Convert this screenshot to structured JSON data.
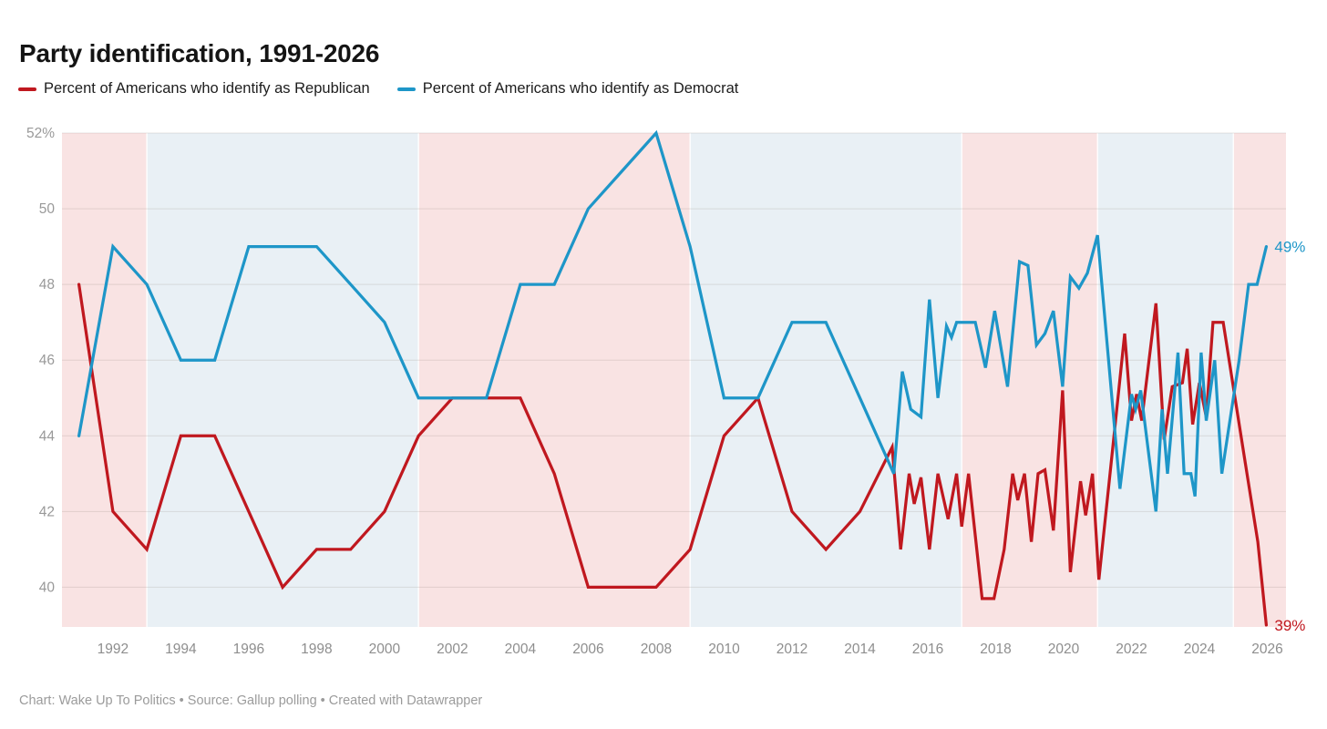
{
  "title": "Party identification, 1991-2026",
  "legend": [
    {
      "label": "Percent of Americans who identify as Republican",
      "color": "#c0181f"
    },
    {
      "label": "Percent of Americans who identify as Democrat",
      "color": "#1e96c8"
    }
  ],
  "footer": "Chart: Wake Up To Politics • Source: Gallup polling • Created with Datawrapper",
  "chart_data": {
    "type": "line",
    "title": "Party identification, 1991-2026",
    "xlabel": "",
    "ylabel": "",
    "x_range": [
      1990.5,
      2026.55
    ],
    "y_range": [
      38.95,
      52
    ],
    "grid": true,
    "legend_position": "top-left",
    "y_ticks": [
      {
        "v": 52,
        "label": "52%"
      },
      {
        "v": 50,
        "label": "50"
      },
      {
        "v": 48,
        "label": "48"
      },
      {
        "v": 46,
        "label": "46"
      },
      {
        "v": 44,
        "label": "44"
      },
      {
        "v": 42,
        "label": "42"
      },
      {
        "v": 40,
        "label": "40"
      }
    ],
    "x_ticks": [
      1992,
      1994,
      1996,
      1998,
      2000,
      2002,
      2004,
      2006,
      2008,
      2010,
      2012,
      2014,
      2016,
      2018,
      2020,
      2022,
      2024,
      2026
    ],
    "band_colors": {
      "R": "#f9e3e3",
      "D": "#e9f0f5"
    },
    "bands": [
      {
        "from": 1990.5,
        "to": 1993,
        "party": "R"
      },
      {
        "from": 1993,
        "to": 2001,
        "party": "D"
      },
      {
        "from": 2001,
        "to": 2009,
        "party": "R"
      },
      {
        "from": 2009,
        "to": 2017,
        "party": "D"
      },
      {
        "from": 2017,
        "to": 2021,
        "party": "R"
      },
      {
        "from": 2021,
        "to": 2025,
        "party": "D"
      },
      {
        "from": 2025,
        "to": 2026.55,
        "party": "R"
      }
    ],
    "series": [
      {
        "name": "Republican",
        "color": "#c0181f",
        "end_label": "39%",
        "points": [
          [
            1991,
            48
          ],
          [
            1992,
            42
          ],
          [
            1993,
            41
          ],
          [
            1994,
            44
          ],
          [
            1995,
            44
          ],
          [
            1996,
            42
          ],
          [
            1997,
            40
          ],
          [
            1998,
            41
          ],
          [
            1999,
            41
          ],
          [
            2000,
            42
          ],
          [
            2001,
            44
          ],
          [
            2002,
            45
          ],
          [
            2003,
            45
          ],
          [
            2004,
            45
          ],
          [
            2005,
            43
          ],
          [
            2006,
            40
          ],
          [
            2007,
            40
          ],
          [
            2008,
            40
          ],
          [
            2009,
            41
          ],
          [
            2010,
            44
          ],
          [
            2011,
            45
          ],
          [
            2012,
            42
          ],
          [
            2013,
            41
          ],
          [
            2014,
            42
          ],
          [
            2014.95,
            43.7
          ],
          [
            2015.2,
            41
          ],
          [
            2015.45,
            43
          ],
          [
            2015.6,
            42.2
          ],
          [
            2015.8,
            42.9
          ],
          [
            2016.05,
            41
          ],
          [
            2016.3,
            43
          ],
          [
            2016.6,
            41.8
          ],
          [
            2016.85,
            43
          ],
          [
            2017.0,
            41.6
          ],
          [
            2017.2,
            43
          ],
          [
            2017.6,
            39.7
          ],
          [
            2017.95,
            39.7
          ],
          [
            2018.25,
            41
          ],
          [
            2018.5,
            43
          ],
          [
            2018.65,
            42.3
          ],
          [
            2018.85,
            43
          ],
          [
            2019.05,
            41.2
          ],
          [
            2019.25,
            43
          ],
          [
            2019.45,
            43.1
          ],
          [
            2019.7,
            41.5
          ],
          [
            2019.97,
            45.2
          ],
          [
            2020.2,
            40.4
          ],
          [
            2020.5,
            42.8
          ],
          [
            2020.65,
            41.9
          ],
          [
            2020.85,
            43
          ],
          [
            2021.04,
            40.2
          ],
          [
            2021.45,
            43.7
          ],
          [
            2021.8,
            46.7
          ],
          [
            2022.0,
            44.4
          ],
          [
            2022.15,
            45.1
          ],
          [
            2022.3,
            44.4
          ],
          [
            2022.72,
            47.5
          ],
          [
            2022.96,
            43.9
          ],
          [
            2023.2,
            45.3
          ],
          [
            2023.5,
            45.4
          ],
          [
            2023.64,
            46.3
          ],
          [
            2023.8,
            44.3
          ],
          [
            2024.0,
            45.4
          ],
          [
            2024.2,
            44.5
          ],
          [
            2024.4,
            47
          ],
          [
            2024.7,
            47
          ],
          [
            2025.05,
            45
          ],
          [
            2025.4,
            43
          ],
          [
            2025.72,
            41.2
          ],
          [
            2025.97,
            39
          ]
        ]
      },
      {
        "name": "Democrat",
        "color": "#1e96c8",
        "end_label": "49%",
        "points": [
          [
            1991,
            44
          ],
          [
            1992,
            49
          ],
          [
            1993,
            48
          ],
          [
            1994,
            46
          ],
          [
            1995,
            46
          ],
          [
            1996,
            49
          ],
          [
            1997,
            49
          ],
          [
            1998,
            49
          ],
          [
            1999,
            48
          ],
          [
            2000,
            47
          ],
          [
            2001,
            45
          ],
          [
            2002,
            45
          ],
          [
            2003,
            45
          ],
          [
            2004,
            48
          ],
          [
            2005,
            48
          ],
          [
            2006,
            50
          ],
          [
            2007,
            51
          ],
          [
            2008,
            52
          ],
          [
            2009,
            49
          ],
          [
            2010,
            45
          ],
          [
            2011,
            45
          ],
          [
            2012,
            47
          ],
          [
            2013,
            47
          ],
          [
            2014,
            45
          ],
          [
            2015.0,
            43
          ],
          [
            2015.25,
            45.7
          ],
          [
            2015.5,
            44.7
          ],
          [
            2015.8,
            44.5
          ],
          [
            2016.05,
            47.6
          ],
          [
            2016.3,
            45
          ],
          [
            2016.55,
            46.9
          ],
          [
            2016.7,
            46.6
          ],
          [
            2016.85,
            47
          ],
          [
            2017.4,
            47
          ],
          [
            2017.7,
            45.8
          ],
          [
            2017.97,
            47.3
          ],
          [
            2018.35,
            45.3
          ],
          [
            2018.7,
            48.6
          ],
          [
            2018.95,
            48.5
          ],
          [
            2019.2,
            46.4
          ],
          [
            2019.45,
            46.7
          ],
          [
            2019.7,
            47.3
          ],
          [
            2019.97,
            45.3
          ],
          [
            2020.2,
            48.2
          ],
          [
            2020.45,
            47.9
          ],
          [
            2020.7,
            48.3
          ],
          [
            2021.0,
            49.3
          ],
          [
            2021.66,
            42.6
          ],
          [
            2022.0,
            45.1
          ],
          [
            2022.12,
            44.7
          ],
          [
            2022.27,
            45.2
          ],
          [
            2022.72,
            42
          ],
          [
            2022.9,
            44.7
          ],
          [
            2023.06,
            43
          ],
          [
            2023.37,
            46.2
          ],
          [
            2023.55,
            43
          ],
          [
            2023.75,
            43
          ],
          [
            2023.87,
            42.4
          ],
          [
            2024.05,
            46.2
          ],
          [
            2024.2,
            44.4
          ],
          [
            2024.45,
            46
          ],
          [
            2024.66,
            43
          ],
          [
            2025.17,
            46
          ],
          [
            2025.45,
            48
          ],
          [
            2025.7,
            48
          ],
          [
            2025.97,
            49
          ]
        ]
      }
    ]
  }
}
